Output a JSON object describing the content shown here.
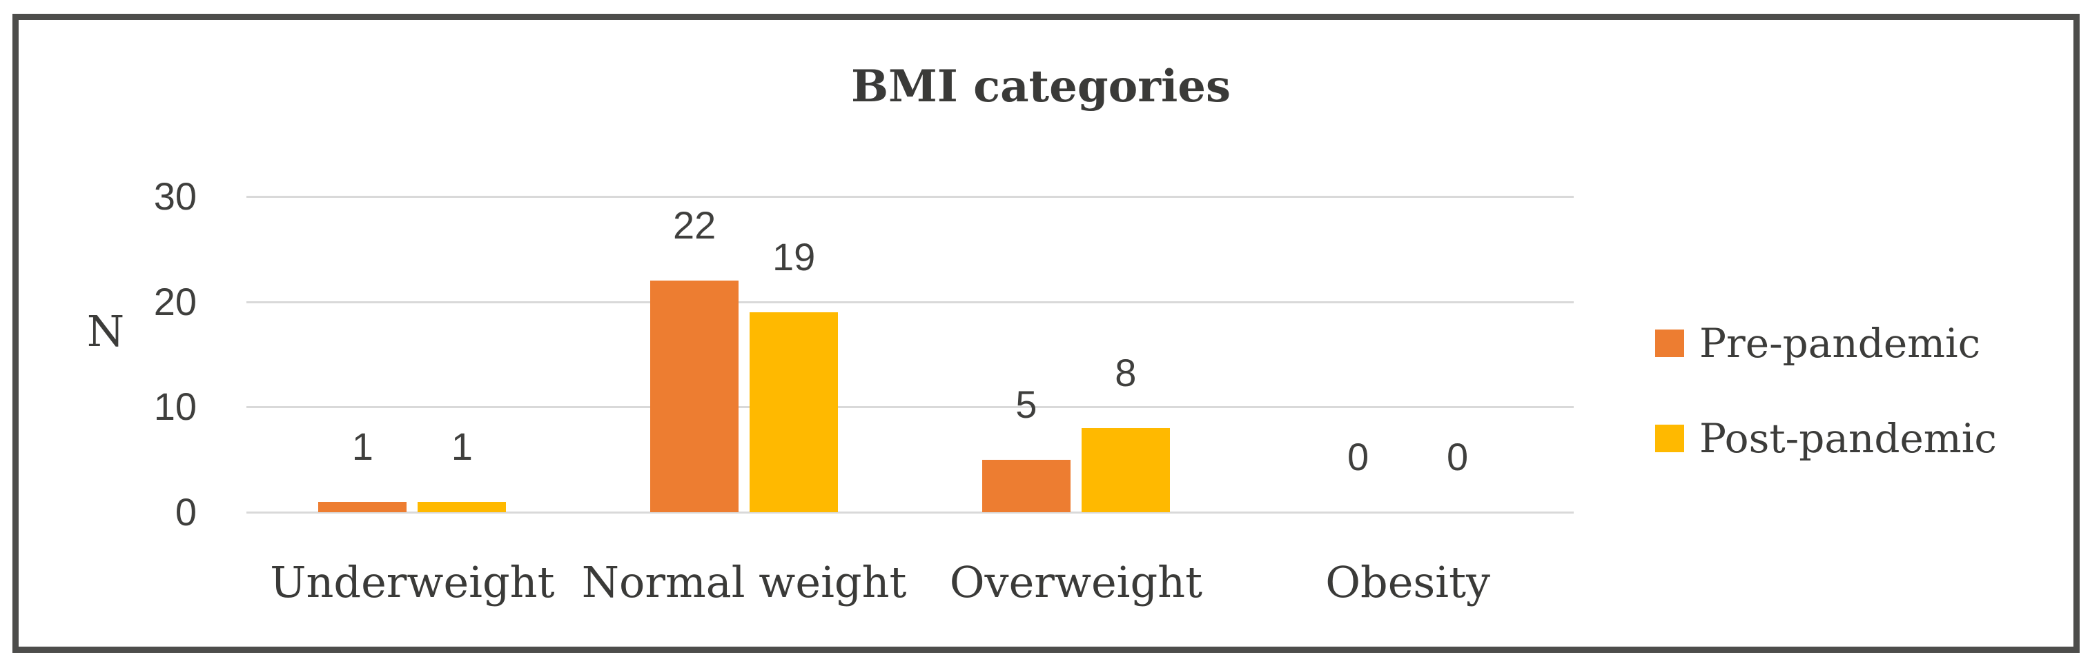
{
  "figure": {
    "background_color": "#FFFFFF",
    "border_color": "#4D4D4B"
  },
  "chart_data": {
    "type": "bar",
    "title": "BMI categories",
    "xlabel": "",
    "ylabel": "N",
    "categories": [
      "Underweight",
      "Normal weight",
      "Overweight",
      "Obesity"
    ],
    "series": [
      {
        "name": "Pre-pandemic",
        "color": "#ED7D31",
        "values": [
          1,
          22,
          5,
          0
        ]
      },
      {
        "name": "Post-pandemic",
        "color": "#FFB900",
        "values": [
          1,
          19,
          8,
          0
        ]
      }
    ],
    "ylim": [
      0,
      30
    ],
    "yticks": [
      30,
      20,
      10,
      0
    ],
    "ytick_step": 10,
    "grid": "horizontal",
    "gridline_color": "#D9D9D9",
    "data_labels": true,
    "legend_position": "right",
    "text_color": "#3C3C3A"
  }
}
